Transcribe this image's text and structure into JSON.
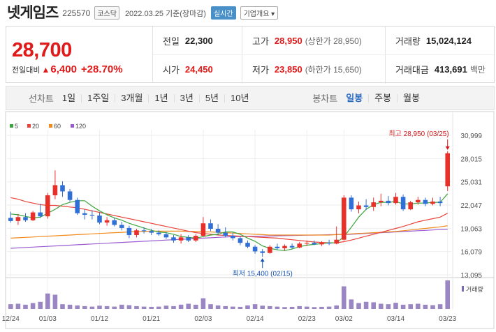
{
  "header": {
    "name": "넷게임즈",
    "code": "225570",
    "market": "코스닥",
    "as_of": "2022.03.25 기준(장마감)",
    "realtime": "실시간",
    "company_info": "기업개요 ▾"
  },
  "summary": {
    "price": "28,700",
    "change_label": "전일대비",
    "change_arrow": "▲",
    "change": "6,400",
    "change_pct": "+28.70%",
    "stats": [
      {
        "label": "전일",
        "value": "22,300",
        "red": false,
        "sub": ""
      },
      {
        "label": "고가",
        "value": "28,950",
        "red": true,
        "sub": "(상한가 28,950)"
      },
      {
        "label": "거래량",
        "value": "15,024,124",
        "red": false,
        "sub": ""
      },
      {
        "label": "시가",
        "value": "24,450",
        "red": true,
        "sub": ""
      },
      {
        "label": "저가",
        "value": "23,850",
        "red": true,
        "sub": "(하한가 15,650)"
      },
      {
        "label": "거래대금",
        "value": "413,691",
        "red": false,
        "sub": "백만"
      }
    ]
  },
  "toolbar": {
    "line_title": "선차트",
    "ranges": [
      "1일",
      "1주일",
      "3개월",
      "1년",
      "3년",
      "5년",
      "10년"
    ],
    "candle_title": "봉차트",
    "candle_types": [
      "일봉",
      "주봉",
      "월봉"
    ],
    "active_candle": "일봉"
  },
  "chart_data": {
    "type": "candlestick",
    "legend": [
      {
        "label": "5",
        "color": "#3aa53a"
      },
      {
        "label": "20",
        "color": "#e8443a"
      },
      {
        "label": "60",
        "color": "#f08a1c"
      },
      {
        "label": "120",
        "color": "#9a5cd0"
      }
    ],
    "y_ticks": [
      30999,
      28015,
      25031,
      22047,
      19063,
      16079,
      13095
    ],
    "y_tick_labels": [
      "30,999",
      "28,015",
      "25,031",
      "22,047",
      "19,063",
      "16,079",
      "13,095"
    ],
    "ylim": [
      13095,
      30999
    ],
    "x_ticks": [
      {
        "label": "12/24",
        "index": 0
      },
      {
        "label": "01/03",
        "index": 5
      },
      {
        "label": "01/12",
        "index": 12
      },
      {
        "label": "01/21",
        "index": 19
      },
      {
        "label": "02/03",
        "index": 26
      },
      {
        "label": "02/14",
        "index": 33
      },
      {
        "label": "02/23",
        "index": 40
      },
      {
        "label": "03/02",
        "index": 45
      },
      {
        "label": "03/14",
        "index": 52
      },
      {
        "label": "03/23",
        "index": 59
      }
    ],
    "candles": [
      {
        "o": 20400,
        "h": 21200,
        "l": 19800,
        "c": 20000
      },
      {
        "o": 20000,
        "h": 20900,
        "l": 19500,
        "c": 20500
      },
      {
        "o": 20500,
        "h": 21000,
        "l": 19900,
        "c": 20100
      },
      {
        "o": 20100,
        "h": 21300,
        "l": 20000,
        "c": 21100
      },
      {
        "o": 21100,
        "h": 22200,
        "l": 20400,
        "c": 20600
      },
      {
        "o": 20600,
        "h": 23600,
        "l": 20300,
        "c": 23300
      },
      {
        "o": 23300,
        "h": 26500,
        "l": 22800,
        "c": 24600
      },
      {
        "o": 24600,
        "h": 25100,
        "l": 23100,
        "c": 23800
      },
      {
        "o": 23800,
        "h": 24100,
        "l": 22500,
        "c": 22700
      },
      {
        "o": 22700,
        "h": 23000,
        "l": 20800,
        "c": 21000
      },
      {
        "o": 21000,
        "h": 21500,
        "l": 20200,
        "c": 20800
      },
      {
        "o": 20800,
        "h": 21400,
        "l": 20200,
        "c": 20700
      },
      {
        "o": 20700,
        "h": 21100,
        "l": 19600,
        "c": 19800
      },
      {
        "o": 19800,
        "h": 20500,
        "l": 19400,
        "c": 20100
      },
      {
        "o": 20100,
        "h": 20400,
        "l": 19300,
        "c": 19500
      },
      {
        "o": 19500,
        "h": 19900,
        "l": 18800,
        "c": 19100
      },
      {
        "o": 19100,
        "h": 19400,
        "l": 17800,
        "c": 18200
      },
      {
        "o": 18200,
        "h": 19000,
        "l": 17900,
        "c": 18800
      },
      {
        "o": 18800,
        "h": 19200,
        "l": 18400,
        "c": 18700
      },
      {
        "o": 18700,
        "h": 19000,
        "l": 18200,
        "c": 18500
      },
      {
        "o": 18500,
        "h": 18800,
        "l": 18100,
        "c": 18300
      },
      {
        "o": 18300,
        "h": 18600,
        "l": 17700,
        "c": 17900
      },
      {
        "o": 17900,
        "h": 18200,
        "l": 17200,
        "c": 17500
      },
      {
        "o": 17500,
        "h": 18300,
        "l": 17100,
        "c": 17900
      },
      {
        "o": 17900,
        "h": 18200,
        "l": 17300,
        "c": 17500
      },
      {
        "o": 17500,
        "h": 18300,
        "l": 17300,
        "c": 18100
      },
      {
        "o": 18100,
        "h": 20500,
        "l": 18000,
        "c": 19700
      },
      {
        "o": 19700,
        "h": 20200,
        "l": 18700,
        "c": 19000
      },
      {
        "o": 19000,
        "h": 19600,
        "l": 18200,
        "c": 18500
      },
      {
        "o": 18500,
        "h": 19200,
        "l": 17900,
        "c": 18100
      },
      {
        "o": 18100,
        "h": 18500,
        "l": 17500,
        "c": 17800
      },
      {
        "o": 17800,
        "h": 18000,
        "l": 16900,
        "c": 17200
      },
      {
        "o": 17200,
        "h": 17500,
        "l": 16500,
        "c": 16700
      },
      {
        "o": 16700,
        "h": 16900,
        "l": 15800,
        "c": 16100
      },
      {
        "o": 16100,
        "h": 16400,
        "l": 15400,
        "c": 15900
      },
      {
        "o": 15900,
        "h": 16900,
        "l": 15800,
        "c": 16700
      },
      {
        "o": 16700,
        "h": 17100,
        "l": 16300,
        "c": 16500
      },
      {
        "o": 16500,
        "h": 17000,
        "l": 16200,
        "c": 16800
      },
      {
        "o": 16800,
        "h": 17100,
        "l": 16400,
        "c": 16600
      },
      {
        "o": 16600,
        "h": 17300,
        "l": 16500,
        "c": 17100
      },
      {
        "o": 17100,
        "h": 17500,
        "l": 16800,
        "c": 17200
      },
      {
        "o": 17200,
        "h": 17500,
        "l": 16900,
        "c": 17000
      },
      {
        "o": 17000,
        "h": 17400,
        "l": 16800,
        "c": 17200
      },
      {
        "o": 17200,
        "h": 17600,
        "l": 16900,
        "c": 17100
      },
      {
        "o": 17100,
        "h": 19300,
        "l": 17000,
        "c": 17600
      },
      {
        "o": 17600,
        "h": 23300,
        "l": 17500,
        "c": 23000
      },
      {
        "o": 23000,
        "h": 23300,
        "l": 21200,
        "c": 21500
      },
      {
        "o": 21500,
        "h": 22500,
        "l": 21000,
        "c": 22000
      },
      {
        "o": 22000,
        "h": 22800,
        "l": 21400,
        "c": 21800
      },
      {
        "o": 21800,
        "h": 23000,
        "l": 21300,
        "c": 22400
      },
      {
        "o": 22400,
        "h": 23500,
        "l": 21900,
        "c": 22600
      },
      {
        "o": 22600,
        "h": 23200,
        "l": 22000,
        "c": 22300
      },
      {
        "o": 22300,
        "h": 23600,
        "l": 22100,
        "c": 23100
      },
      {
        "o": 23100,
        "h": 23400,
        "l": 21300,
        "c": 21500
      },
      {
        "o": 21500,
        "h": 22600,
        "l": 21400,
        "c": 22400
      },
      {
        "o": 22400,
        "h": 23100,
        "l": 22100,
        "c": 22700
      },
      {
        "o": 22700,
        "h": 23000,
        "l": 21900,
        "c": 22200
      },
      {
        "o": 22200,
        "h": 23000,
        "l": 22000,
        "c": 22500
      },
      {
        "o": 22500,
        "h": 23100,
        "l": 21900,
        "c": 22300
      },
      {
        "o": 24450,
        "h": 28950,
        "l": 23850,
        "c": 28700
      }
    ],
    "ma5": [
      20900,
      20800,
      20600,
      20400,
      20500,
      21000,
      21500,
      22100,
      22400,
      22600,
      22600,
      21900,
      21300,
      20800,
      20400,
      20100,
      19700,
      19400,
      19100,
      18800,
      18600,
      18500,
      18300,
      18000,
      17900,
      17800,
      18000,
      18200,
      18300,
      18600,
      18600,
      18300,
      17800,
      17400,
      16800,
      16500,
      16300,
      16200,
      16400,
      16700,
      16900,
      17000,
      17100,
      17200,
      17200,
      18000,
      19200,
      20500,
      21500,
      22100,
      22400,
      22400,
      22500,
      22200,
      22200,
      22300,
      22300,
      22400,
      22400,
      23500
    ],
    "ma20": [
      23000,
      22800,
      22500,
      22300,
      22100,
      22000,
      22000,
      21900,
      21800,
      21700,
      21500,
      21300,
      21100,
      20900,
      20700,
      20500,
      20300,
      20100,
      19900,
      19700,
      19500,
      19300,
      19100,
      18900,
      18700,
      18500,
      18400,
      18300,
      18200,
      18150,
      18100,
      18050,
      18000,
      17950,
      17900,
      17850,
      17800,
      17700,
      17600,
      17500,
      17400,
      17300,
      17250,
      17200,
      17200,
      17350,
      17550,
      17800,
      18050,
      18300,
      18550,
      18800,
      19050,
      19300,
      19600,
      19900,
      20100,
      20300,
      20500,
      21000
    ],
    "ma60": [
      17800,
      17850,
      17900,
      17950,
      18000,
      18050,
      18100,
      18150,
      18200,
      18250,
      18300,
      18350,
      18400,
      18450,
      18500,
      18550,
      18600,
      18650,
      18650,
      18700,
      18700,
      18700,
      18700,
      18700,
      18650,
      18650,
      18600,
      18600,
      18550,
      18500,
      18450,
      18400,
      18350,
      18300,
      18250,
      18200,
      18200,
      18200,
      18200,
      18200,
      18200,
      18200,
      18200,
      18200,
      18250,
      18300,
      18350,
      18400,
      18450,
      18500,
      18550,
      18600,
      18650,
      18750,
      18850,
      18950,
      19050,
      19150,
      19250,
      19400
    ],
    "ma120": [
      16500,
      16550,
      16600,
      16650,
      16700,
      16750,
      16800,
      16850,
      16900,
      16950,
      17000,
      17050,
      17100,
      17150,
      17200,
      17250,
      17300,
      17350,
      17400,
      17450,
      17500,
      17550,
      17600,
      17650,
      17700,
      17750,
      17800,
      17850,
      17900,
      17950,
      17980,
      18000,
      18020,
      18040,
      18060,
      18080,
      18100,
      18120,
      18140,
      18160,
      18180,
      18200,
      18220,
      18240,
      18260,
      18280,
      18300,
      18350,
      18400,
      18450,
      18500,
      18550,
      18600,
      18650,
      18700,
      18750,
      18800,
      18850,
      18900,
      18950
    ],
    "volume": [
      20,
      22,
      18,
      25,
      30,
      65,
      60,
      20,
      18,
      15,
      12,
      10,
      14,
      12,
      10,
      18,
      16,
      12,
      10,
      9,
      10,
      14,
      12,
      18,
      22,
      18,
      45,
      20,
      15,
      12,
      10,
      9,
      15,
      20,
      14,
      12,
      10,
      8,
      9,
      12,
      10,
      8,
      9,
      10,
      15,
      95,
      40,
      25,
      30,
      28,
      22,
      20,
      26,
      18,
      20,
      22,
      18,
      16,
      20,
      120
    ],
    "volume_label": "거래량",
    "annotations": {
      "high_label": "최고 28,950 (03/25)",
      "high_index": 59,
      "high_value": 28950,
      "low_label": "최저 15,400 (02/15)",
      "low_index": 34,
      "low_value": 15400
    }
  }
}
